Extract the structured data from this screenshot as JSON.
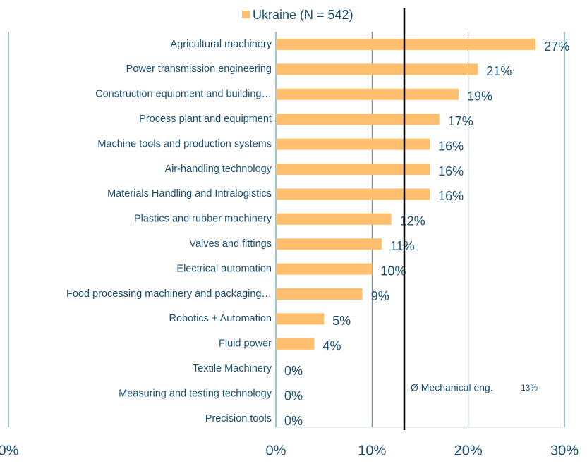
{
  "chart_data": {
    "type": "barh",
    "legend": "Ukraine (N = 542)",
    "color": "#ffbf6e",
    "categories": [
      "Agricultural machinery",
      "Power transmission engineering",
      "Construction equipment and building…",
      "Process plant and equipment",
      "Machine tools and production systems",
      "Air-handling technology",
      "Materials Handling and Intralogistics",
      "Plastics and rubber machinery",
      "Valves and fittings",
      "Electrical automation",
      "Food processing machinery and packaging…",
      "Robotics + Automation",
      "Fluid power",
      "Textile Machinery",
      "Measuring and testing technology",
      "Precision tools"
    ],
    "values": [
      27,
      21,
      19,
      17,
      16,
      16,
      16,
      12,
      11,
      10,
      9,
      5,
      4,
      0,
      0,
      0
    ],
    "value_labels": [
      "27%",
      "21%",
      "19%",
      "17%",
      "16%",
      "16%",
      "16%",
      "12%",
      "11%",
      "10%",
      "9%",
      "5%",
      "4%",
      "0%",
      "0%",
      "0%"
    ],
    "xlim": [
      0,
      30
    ],
    "xticks": [
      {
        "value": 0,
        "label": "0%"
      },
      {
        "value": 10,
        "label": "10%"
      },
      {
        "value": 20,
        "label": "20%"
      },
      {
        "value": 30,
        "label": "30%"
      }
    ],
    "grid": true,
    "reference_line": {
      "value": 13.35,
      "label": "Ø Mechanical eng.",
      "value_label": "13%"
    }
  },
  "left_panel": {
    "tick_label": "0%"
  }
}
